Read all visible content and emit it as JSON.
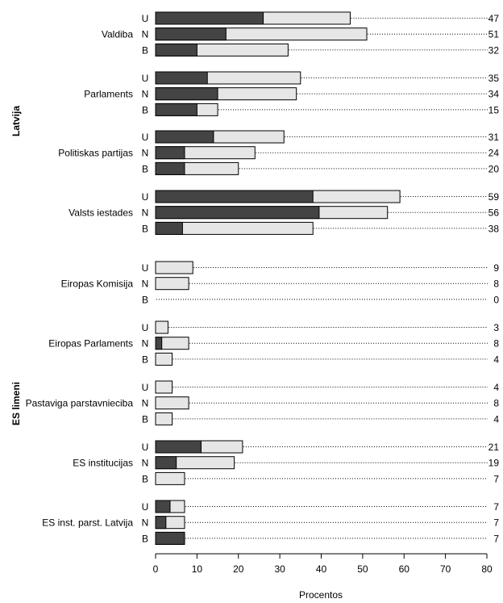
{
  "chart_data": {
    "type": "bar",
    "orientation": "horizontal",
    "stacked": true,
    "xlabel": "Procentos",
    "xlim": [
      0,
      80
    ],
    "xticks": [
      0,
      10,
      20,
      30,
      40,
      50,
      60,
      70,
      80
    ],
    "colors": {
      "dark": "#444444",
      "light": "#e6e6e6",
      "outline": "#000000"
    },
    "groups": [
      {
        "name": "Latvija",
        "categories": [
          {
            "label": "Valdiba",
            "rows": [
              {
                "sub": "U",
                "dark": 26,
                "total": 47
              },
              {
                "sub": "N",
                "dark": 17,
                "total": 51
              },
              {
                "sub": "B",
                "dark": 10,
                "total": 32
              }
            ]
          },
          {
            "label": "Parlaments",
            "rows": [
              {
                "sub": "U",
                "dark": 12.5,
                "total": 35
              },
              {
                "sub": "N",
                "dark": 15,
                "total": 34
              },
              {
                "sub": "B",
                "dark": 10,
                "total": 15
              }
            ]
          },
          {
            "label": "Politiskas partijas",
            "rows": [
              {
                "sub": "U",
                "dark": 14,
                "total": 31
              },
              {
                "sub": "N",
                "dark": 7,
                "total": 24
              },
              {
                "sub": "B",
                "dark": 7,
                "total": 20
              }
            ]
          },
          {
            "label": "Valsts iestades",
            "rows": [
              {
                "sub": "U",
                "dark": 38,
                "total": 59
              },
              {
                "sub": "N",
                "dark": 39.5,
                "total": 56
              },
              {
                "sub": "B",
                "dark": 6.5,
                "total": 38
              }
            ]
          }
        ]
      },
      {
        "name": "ES limeni",
        "categories": [
          {
            "label": "Eiropas Komisija",
            "rows": [
              {
                "sub": "U",
                "dark": 0,
                "total": 9
              },
              {
                "sub": "N",
                "dark": 0,
                "total": 8
              },
              {
                "sub": "B",
                "dark": 0,
                "total": 0
              }
            ]
          },
          {
            "label": "Eiropas Parlaments",
            "rows": [
              {
                "sub": "U",
                "dark": 0,
                "total": 3
              },
              {
                "sub": "N",
                "dark": 1.5,
                "total": 8
              },
              {
                "sub": "B",
                "dark": 0,
                "total": 4
              }
            ]
          },
          {
            "label": "Pastaviga parstavnieciba",
            "rows": [
              {
                "sub": "U",
                "dark": 0,
                "total": 4
              },
              {
                "sub": "N",
                "dark": 0,
                "total": 8
              },
              {
                "sub": "B",
                "dark": 0,
                "total": 4
              }
            ]
          },
          {
            "label": "ES institucijas",
            "rows": [
              {
                "sub": "U",
                "dark": 11,
                "total": 21
              },
              {
                "sub": "N",
                "dark": 5,
                "total": 19
              },
              {
                "sub": "B",
                "dark": 0,
                "total": 7
              }
            ]
          },
          {
            "label": "ES inst. parst. Latvija",
            "rows": [
              {
                "sub": "U",
                "dark": 3.5,
                "total": 7
              },
              {
                "sub": "N",
                "dark": 2.5,
                "total": 7
              },
              {
                "sub": "B",
                "dark": 7,
                "total": 7
              }
            ]
          }
        ]
      }
    ]
  }
}
